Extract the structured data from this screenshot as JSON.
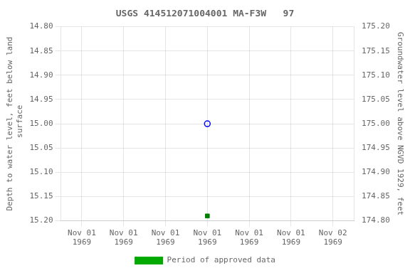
{
  "chart_data": {
    "type": "scatter",
    "title": "USGS 414512071004001 MA-F3W   97",
    "categories": [
      "Nov 01\n1969",
      "Nov 01\n1969",
      "Nov 01\n1969",
      "Nov 01\n1969",
      "Nov 01\n1969",
      "Nov 01\n1969",
      "Nov 02\n1969"
    ],
    "series": [
      {
        "color": "blue",
        "marker": "open_circle",
        "values": [
          null,
          null,
          null,
          15.0,
          null,
          null,
          null
        ]
      },
      {
        "color": "green",
        "marker": "square",
        "values": [
          null,
          null,
          null,
          15.19,
          null,
          null,
          null
        ]
      },
      {
        "name": "Period of approved data",
        "color": "#00aa00",
        "type": "bar",
        "values": [
          null,
          null,
          null,
          null,
          null,
          null,
          null
        ]
      }
    ],
    "ylabel": "Depth to water level, feet below land\n surface",
    "y2label": "Groundwater level above NGVD 1929, feet",
    "ylim": [
      15.2,
      14.8
    ],
    "yticks": [
      {
        "value": 14.8,
        "label": "14.80"
      },
      {
        "value": 14.85,
        "label": "14.85"
      },
      {
        "value": 14.9,
        "label": "14.90"
      },
      {
        "value": 14.95,
        "label": "14.95"
      },
      {
        "value": 15.0,
        "label": "15.00"
      },
      {
        "value": 15.05,
        "label": "15.05"
      },
      {
        "value": 15.1,
        "label": "15.10"
      },
      {
        "value": 15.15,
        "label": "15.15"
      },
      {
        "value": 15.2,
        "label": "15.20"
      }
    ],
    "y2lim": [
      174.8,
      175.2
    ],
    "y2ticks": [
      {
        "value": 175.2,
        "label": "175.20"
      },
      {
        "value": 175.15,
        "label": "175.15"
      },
      {
        "value": 175.1,
        "label": "175.10"
      },
      {
        "value": 175.05,
        "label": "175.05"
      },
      {
        "value": 175.0,
        "label": "175.00"
      },
      {
        "value": 174.95,
        "label": "174.95"
      },
      {
        "value": 174.9,
        "label": "174.90"
      },
      {
        "value": 174.85,
        "label": "174.85"
      },
      {
        "value": 174.8,
        "label": "174.80"
      }
    ],
    "grid": true,
    "legend": "bottom"
  }
}
